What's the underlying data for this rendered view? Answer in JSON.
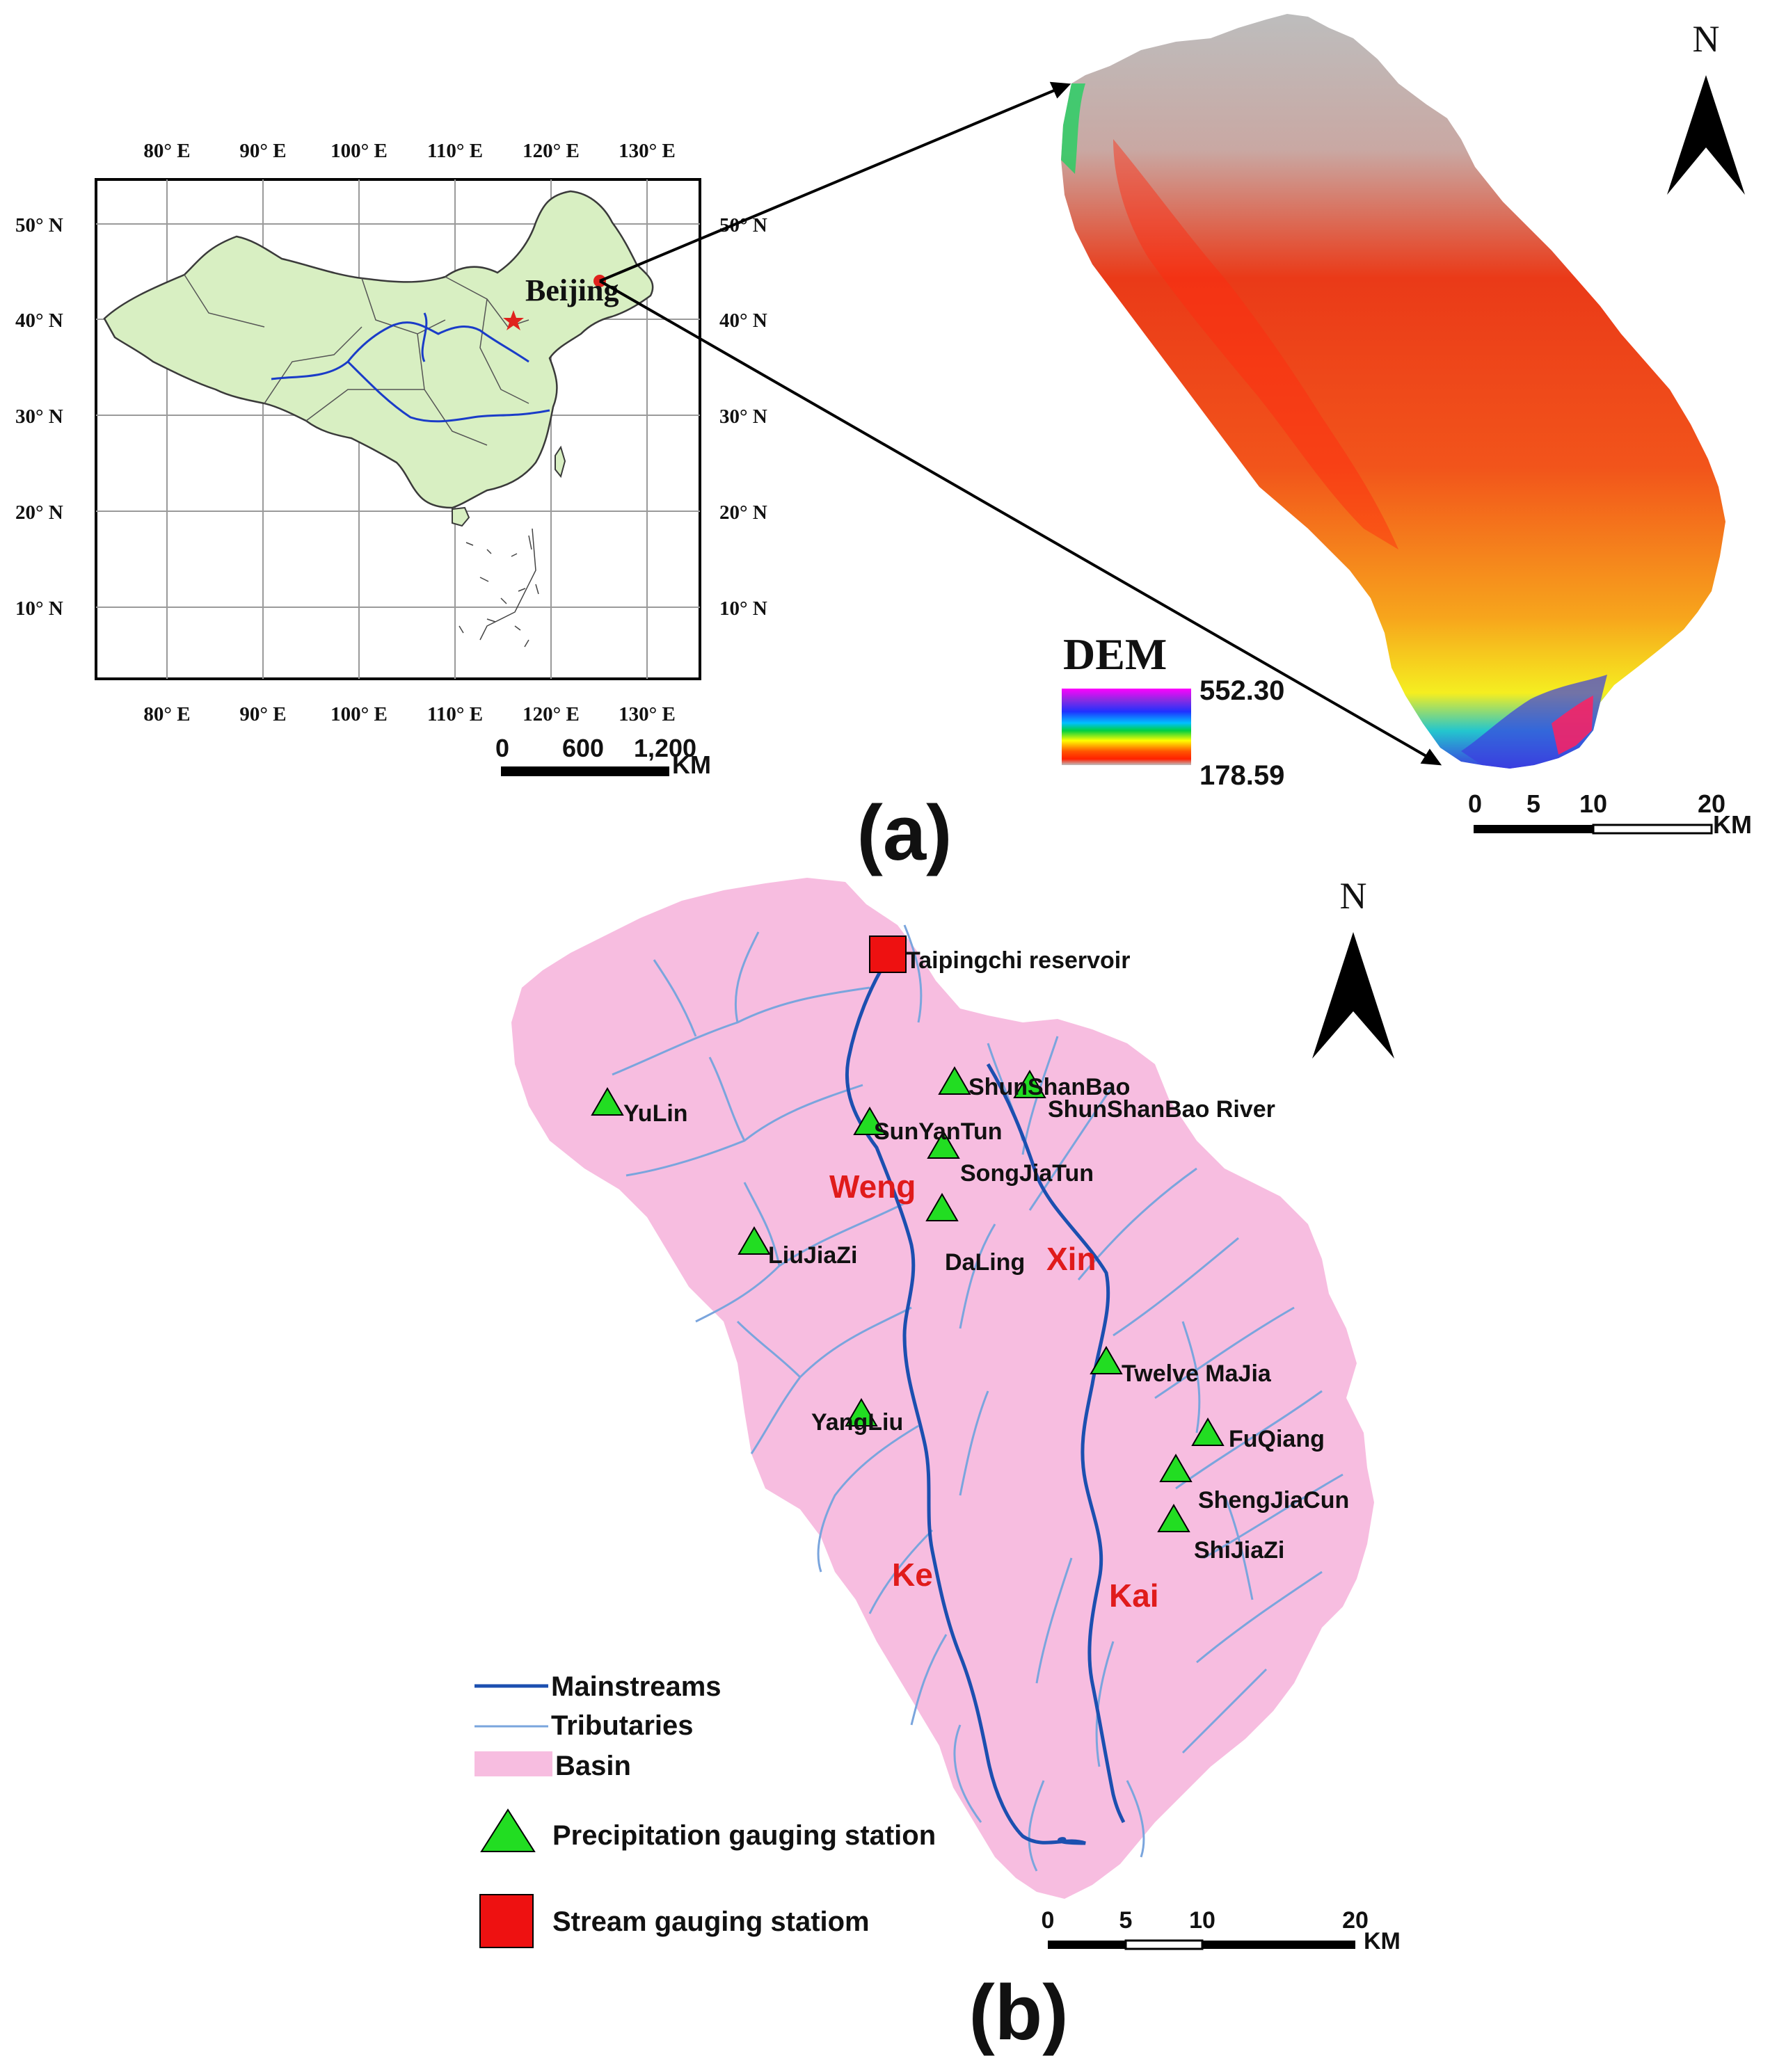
{
  "panel_a": {
    "label": "(a)",
    "inset": {
      "lon_labels": [
        "80° E",
        "90° E",
        "100° E",
        "110° E",
        "120° E",
        "130° E"
      ],
      "lat_labels": [
        "50° N",
        "40° N",
        "30° N",
        "20° N",
        "10° N"
      ],
      "city": "Beijing",
      "scale": {
        "ticks": [
          "0",
          "600",
          "1,200"
        ],
        "unit": "KM"
      }
    },
    "dem": {
      "title": "DEM",
      "max": "552.30",
      "min": "178.59",
      "north": "N",
      "scale": {
        "ticks": [
          "0",
          "5",
          "10",
          "20"
        ],
        "unit": "KM"
      }
    }
  },
  "panel_b": {
    "label": "(b)",
    "north": "N",
    "reservoir": "Taipingchi reservoir",
    "river_label": "ShunShanBao River",
    "rivers": {
      "weng": "Weng",
      "xin": "Xin",
      "ke": "Ke",
      "kai": "Kai"
    },
    "stations": [
      {
        "name": "YuLin"
      },
      {
        "name": "ShunShanBao"
      },
      {
        "name": "SunYanTun"
      },
      {
        "name": "SongJiaTun"
      },
      {
        "name": "DaLing"
      },
      {
        "name": "LiuJiaZi"
      },
      {
        "name": "Twelve MaJia"
      },
      {
        "name": "YangLiu"
      },
      {
        "name": "FuQiang"
      },
      {
        "name": "ShengJiaCun"
      },
      {
        "name": "ShiJiaZi"
      }
    ],
    "legend": {
      "mainstreams": "Mainstreams",
      "tributaries": "Tributaries",
      "basin": "Basin",
      "precip": "Precipitation gauging station",
      "stream": "Stream gauging statiom"
    },
    "scale": {
      "ticks": [
        "0",
        "5",
        "10",
        "20"
      ],
      "unit": "KM"
    },
    "colors": {
      "basin": "#f7bde0",
      "mainstream": "#1c4fb0",
      "tributary": "#7aa5dd",
      "station": "#22dd22",
      "gauge": "#ee1111",
      "river_label": "#e01b1b"
    }
  }
}
